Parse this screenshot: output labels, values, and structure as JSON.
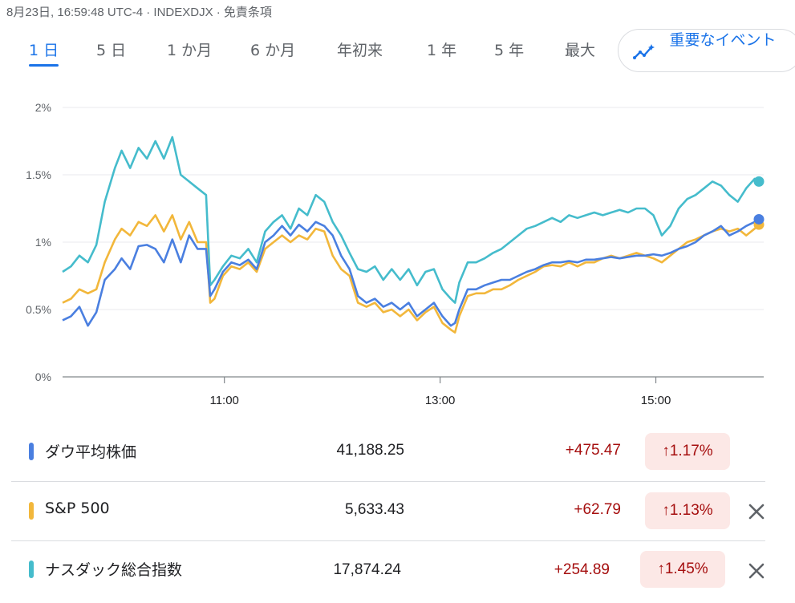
{
  "header": {
    "info": "8月23日, 16:59:48 UTC-4 · INDEXDJX · 免責条項"
  },
  "tabs": [
    {
      "label": "1 日",
      "active": true
    },
    {
      "label": "5 日"
    },
    {
      "label": "1 か月"
    },
    {
      "label": "6 か月"
    },
    {
      "label": "年初来"
    },
    {
      "label": "1 年"
    },
    {
      "label": "5 年"
    },
    {
      "label": "最大"
    }
  ],
  "events_button": {
    "label": "重要なイベント",
    "icon": "sparkle-trend-icon"
  },
  "colors": {
    "dow": "#4a7fe0",
    "sp": "#f2b73b",
    "nasdaq": "#45bccc",
    "up": "#a50e0e",
    "up_bg": "#fce8e6",
    "accent": "#1a73e8"
  },
  "chart_data": {
    "type": "line",
    "x_range": [
      "9:30",
      "16:00"
    ],
    "y_range": [
      0,
      2
    ],
    "y_ticks": [
      "0%",
      "0.5%",
      "1%",
      "1.5%",
      "2%"
    ],
    "x_ticks": [
      "11:00",
      "13:00",
      "15:00"
    ],
    "grid": true,
    "series": [
      {
        "name": "ダウ平均株価",
        "color": "#4a7fe0",
        "points": [
          [
            0,
            0.42
          ],
          [
            0.1,
            0.45
          ],
          [
            0.2,
            0.52
          ],
          [
            0.3,
            0.38
          ],
          [
            0.4,
            0.48
          ],
          [
            0.5,
            0.72
          ],
          [
            0.62,
            0.8
          ],
          [
            0.7,
            0.88
          ],
          [
            0.8,
            0.8
          ],
          [
            0.9,
            0.97
          ],
          [
            1.0,
            0.98
          ],
          [
            1.1,
            0.95
          ],
          [
            1.2,
            0.85
          ],
          [
            1.3,
            1.02
          ],
          [
            1.4,
            0.85
          ],
          [
            1.5,
            1.05
          ],
          [
            1.6,
            0.95
          ],
          [
            1.7,
            0.95
          ],
          [
            1.75,
            0.6
          ],
          [
            1.8,
            0.65
          ],
          [
            1.9,
            0.78
          ],
          [
            2.0,
            0.85
          ],
          [
            2.1,
            0.83
          ],
          [
            2.2,
            0.87
          ],
          [
            2.3,
            0.8
          ],
          [
            2.4,
            1.0
          ],
          [
            2.5,
            1.05
          ],
          [
            2.6,
            1.12
          ],
          [
            2.7,
            1.05
          ],
          [
            2.8,
            1.13
          ],
          [
            2.9,
            1.08
          ],
          [
            3.0,
            1.15
          ],
          [
            3.1,
            1.12
          ],
          [
            3.2,
            1.05
          ],
          [
            3.3,
            0.9
          ],
          [
            3.4,
            0.8
          ],
          [
            3.5,
            0.6
          ],
          [
            3.6,
            0.55
          ],
          [
            3.7,
            0.58
          ],
          [
            3.8,
            0.52
          ],
          [
            3.9,
            0.55
          ],
          [
            4.0,
            0.5
          ],
          [
            4.1,
            0.55
          ],
          [
            4.2,
            0.45
          ],
          [
            4.3,
            0.5
          ],
          [
            4.4,
            0.55
          ],
          [
            4.5,
            0.45
          ],
          [
            4.6,
            0.38
          ],
          [
            4.65,
            0.4
          ],
          [
            4.7,
            0.5
          ],
          [
            4.8,
            0.65
          ],
          [
            4.9,
            0.65
          ],
          [
            5.0,
            0.68
          ],
          [
            5.1,
            0.7
          ],
          [
            5.2,
            0.72
          ],
          [
            5.3,
            0.72
          ],
          [
            5.4,
            0.75
          ],
          [
            5.5,
            0.78
          ],
          [
            5.6,
            0.8
          ],
          [
            5.7,
            0.83
          ],
          [
            5.8,
            0.85
          ],
          [
            5.9,
            0.85
          ],
          [
            6.0,
            0.86
          ],
          [
            6.1,
            0.85
          ],
          [
            6.2,
            0.87
          ],
          [
            6.3,
            0.87
          ],
          [
            6.4,
            0.88
          ],
          [
            6.5,
            0.89
          ],
          [
            6.6,
            0.88
          ],
          [
            6.7,
            0.89
          ],
          [
            6.8,
            0.9
          ],
          [
            6.9,
            0.9
          ],
          [
            7.0,
            0.91
          ],
          [
            7.1,
            0.9
          ],
          [
            7.2,
            0.92
          ],
          [
            7.3,
            0.95
          ],
          [
            7.4,
            0.97
          ],
          [
            7.5,
            1.0
          ],
          [
            7.6,
            1.05
          ],
          [
            7.7,
            1.08
          ],
          [
            7.8,
            1.12
          ],
          [
            7.9,
            1.05
          ],
          [
            8.0,
            1.08
          ],
          [
            8.1,
            1.12
          ],
          [
            8.2,
            1.15
          ],
          [
            8.25,
            1.17
          ]
        ]
      },
      {
        "name": "S&P 500",
        "color": "#f2b73b",
        "points": [
          [
            0,
            0.55
          ],
          [
            0.1,
            0.58
          ],
          [
            0.2,
            0.65
          ],
          [
            0.3,
            0.62
          ],
          [
            0.4,
            0.65
          ],
          [
            0.5,
            0.85
          ],
          [
            0.62,
            1.02
          ],
          [
            0.7,
            1.1
          ],
          [
            0.8,
            1.05
          ],
          [
            0.9,
            1.15
          ],
          [
            1.0,
            1.12
          ],
          [
            1.1,
            1.2
          ],
          [
            1.2,
            1.08
          ],
          [
            1.3,
            1.2
          ],
          [
            1.4,
            1.02
          ],
          [
            1.5,
            1.15
          ],
          [
            1.6,
            1.0
          ],
          [
            1.7,
            1.0
          ],
          [
            1.75,
            0.55
          ],
          [
            1.8,
            0.58
          ],
          [
            1.9,
            0.75
          ],
          [
            2.0,
            0.82
          ],
          [
            2.1,
            0.8
          ],
          [
            2.2,
            0.85
          ],
          [
            2.3,
            0.78
          ],
          [
            2.4,
            0.95
          ],
          [
            2.5,
            1.0
          ],
          [
            2.6,
            1.05
          ],
          [
            2.7,
            1.0
          ],
          [
            2.8,
            1.05
          ],
          [
            2.9,
            1.02
          ],
          [
            3.0,
            1.1
          ],
          [
            3.1,
            1.08
          ],
          [
            3.2,
            0.9
          ],
          [
            3.3,
            0.8
          ],
          [
            3.4,
            0.75
          ],
          [
            3.5,
            0.55
          ],
          [
            3.6,
            0.52
          ],
          [
            3.7,
            0.55
          ],
          [
            3.8,
            0.48
          ],
          [
            3.9,
            0.5
          ],
          [
            4.0,
            0.45
          ],
          [
            4.1,
            0.5
          ],
          [
            4.2,
            0.42
          ],
          [
            4.3,
            0.48
          ],
          [
            4.4,
            0.52
          ],
          [
            4.5,
            0.4
          ],
          [
            4.6,
            0.35
          ],
          [
            4.65,
            0.33
          ],
          [
            4.7,
            0.45
          ],
          [
            4.8,
            0.6
          ],
          [
            4.9,
            0.62
          ],
          [
            5.0,
            0.62
          ],
          [
            5.1,
            0.65
          ],
          [
            5.2,
            0.65
          ],
          [
            5.3,
            0.68
          ],
          [
            5.4,
            0.72
          ],
          [
            5.5,
            0.75
          ],
          [
            5.6,
            0.78
          ],
          [
            5.7,
            0.82
          ],
          [
            5.8,
            0.83
          ],
          [
            5.9,
            0.82
          ],
          [
            6.0,
            0.85
          ],
          [
            6.1,
            0.82
          ],
          [
            6.2,
            0.85
          ],
          [
            6.3,
            0.85
          ],
          [
            6.4,
            0.88
          ],
          [
            6.5,
            0.9
          ],
          [
            6.6,
            0.88
          ],
          [
            6.7,
            0.9
          ],
          [
            6.8,
            0.92
          ],
          [
            6.9,
            0.9
          ],
          [
            7.0,
            0.88
          ],
          [
            7.1,
            0.85
          ],
          [
            7.2,
            0.9
          ],
          [
            7.3,
            0.95
          ],
          [
            7.4,
            1.0
          ],
          [
            7.5,
            1.02
          ],
          [
            7.6,
            1.05
          ],
          [
            7.7,
            1.08
          ],
          [
            7.8,
            1.1
          ],
          [
            7.9,
            1.08
          ],
          [
            8.0,
            1.1
          ],
          [
            8.1,
            1.05
          ],
          [
            8.2,
            1.1
          ],
          [
            8.25,
            1.13
          ]
        ]
      },
      {
        "name": "ナスダック総合指数",
        "color": "#45bccc",
        "points": [
          [
            0,
            0.78
          ],
          [
            0.1,
            0.82
          ],
          [
            0.2,
            0.9
          ],
          [
            0.3,
            0.85
          ],
          [
            0.4,
            0.98
          ],
          [
            0.5,
            1.3
          ],
          [
            0.62,
            1.55
          ],
          [
            0.7,
            1.68
          ],
          [
            0.8,
            1.55
          ],
          [
            0.9,
            1.7
          ],
          [
            1.0,
            1.62
          ],
          [
            1.1,
            1.75
          ],
          [
            1.2,
            1.62
          ],
          [
            1.3,
            1.78
          ],
          [
            1.4,
            1.5
          ],
          [
            1.5,
            1.45
          ],
          [
            1.6,
            1.4
          ],
          [
            1.7,
            1.35
          ],
          [
            1.75,
            0.68
          ],
          [
            1.8,
            0.72
          ],
          [
            1.9,
            0.82
          ],
          [
            2.0,
            0.9
          ],
          [
            2.1,
            0.88
          ],
          [
            2.2,
            0.95
          ],
          [
            2.3,
            0.85
          ],
          [
            2.4,
            1.08
          ],
          [
            2.5,
            1.15
          ],
          [
            2.6,
            1.2
          ],
          [
            2.7,
            1.1
          ],
          [
            2.8,
            1.25
          ],
          [
            2.9,
            1.2
          ],
          [
            3.0,
            1.35
          ],
          [
            3.1,
            1.3
          ],
          [
            3.2,
            1.15
          ],
          [
            3.3,
            1.05
          ],
          [
            3.4,
            0.92
          ],
          [
            3.5,
            0.8
          ],
          [
            3.6,
            0.78
          ],
          [
            3.7,
            0.82
          ],
          [
            3.8,
            0.72
          ],
          [
            3.9,
            0.8
          ],
          [
            4.0,
            0.72
          ],
          [
            4.1,
            0.8
          ],
          [
            4.2,
            0.68
          ],
          [
            4.3,
            0.78
          ],
          [
            4.4,
            0.8
          ],
          [
            4.5,
            0.65
          ],
          [
            4.6,
            0.58
          ],
          [
            4.65,
            0.55
          ],
          [
            4.7,
            0.7
          ],
          [
            4.8,
            0.85
          ],
          [
            4.9,
            0.85
          ],
          [
            5.0,
            0.88
          ],
          [
            5.1,
            0.92
          ],
          [
            5.2,
            0.95
          ],
          [
            5.3,
            1.0
          ],
          [
            5.4,
            1.05
          ],
          [
            5.5,
            1.1
          ],
          [
            5.6,
            1.12
          ],
          [
            5.7,
            1.15
          ],
          [
            5.8,
            1.18
          ],
          [
            5.9,
            1.15
          ],
          [
            6.0,
            1.2
          ],
          [
            6.1,
            1.18
          ],
          [
            6.2,
            1.2
          ],
          [
            6.3,
            1.22
          ],
          [
            6.4,
            1.2
          ],
          [
            6.5,
            1.22
          ],
          [
            6.6,
            1.24
          ],
          [
            6.7,
            1.22
          ],
          [
            6.8,
            1.25
          ],
          [
            6.9,
            1.25
          ],
          [
            7.0,
            1.2
          ],
          [
            7.1,
            1.05
          ],
          [
            7.2,
            1.12
          ],
          [
            7.3,
            1.25
          ],
          [
            7.4,
            1.32
          ],
          [
            7.5,
            1.35
          ],
          [
            7.6,
            1.4
          ],
          [
            7.7,
            1.45
          ],
          [
            7.8,
            1.42
          ],
          [
            7.9,
            1.35
          ],
          [
            8.0,
            1.3
          ],
          [
            8.1,
            1.4
          ],
          [
            8.2,
            1.47
          ],
          [
            8.25,
            1.45
          ]
        ]
      }
    ]
  },
  "rows": [
    {
      "name": "ダウ平均株価",
      "value": "41,188.25",
      "change": "+475.47",
      "arrow": "↑",
      "pct": "1.17%",
      "color": "#4a7fe0",
      "removable": false
    },
    {
      "name": "S&P 500",
      "value": "5,633.43",
      "change": "+62.79",
      "arrow": "↑",
      "pct": "1.13%",
      "color": "#f2b73b",
      "removable": true
    },
    {
      "name": "ナスダック総合指数",
      "value": "17,874.24",
      "change": "+254.89",
      "arrow": "↑",
      "pct": "1.45%",
      "color": "#45bccc",
      "removable": true
    }
  ]
}
